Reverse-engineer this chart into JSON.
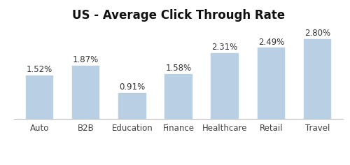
{
  "title": "US - Average Click Through Rate",
  "categories": [
    "Auto",
    "B2B",
    "Education",
    "Finance",
    "Healthcare",
    "Retail",
    "Travel"
  ],
  "values": [
    1.52,
    1.87,
    0.91,
    1.58,
    2.31,
    2.49,
    2.8
  ],
  "bar_color": "#b8cfe4",
  "bar_edge_color": "#b8cfe4",
  "title_fontsize": 12,
  "tick_fontsize": 8.5,
  "label_fontsize": 8.5,
  "ylim": [
    0,
    3.3
  ],
  "background_color": "#ffffff",
  "bar_width": 0.6,
  "figsize": [
    5.0,
    2.36
  ],
  "dpi": 100
}
